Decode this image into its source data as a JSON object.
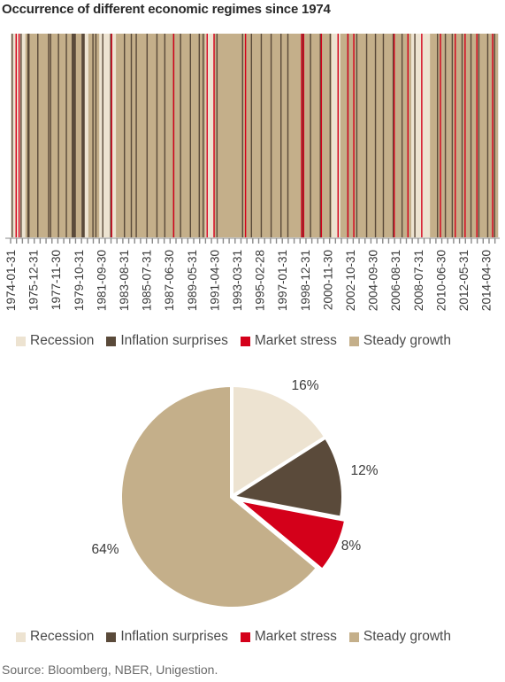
{
  "title": "Occurrence of different economic regimes since 1974",
  "source": "Source: Bloomberg, NBER, Unigestion.",
  "colors": {
    "recession": "#ede3d1",
    "inflation_surprises": "#5a4a3a",
    "market_stress": "#d4001a",
    "steady_growth": "#c4af8a",
    "axis": "#8a8a8a"
  },
  "legend": [
    {
      "key": "recession",
      "label": "Recession"
    },
    {
      "key": "inflation_surprises",
      "label": "Inflation surprises"
    },
    {
      "key": "market_stress",
      "label": "Market stress"
    },
    {
      "key": "steady_growth",
      "label": "Steady growth"
    }
  ],
  "chart_data": [
    {
      "type": "heatmap",
      "title": "Occurrence of different economic regimes since 1974",
      "x_start": "1974-01-31",
      "x_end": "2015-03-31",
      "x_tick_labels": [
        "1974-01-31",
        "1975-12-31",
        "1977-11-30",
        "1979-10-31",
        "1981-09-30",
        "1983-08-31",
        "1985-07-31",
        "1987-06-30",
        "1989-05-31",
        "1991-04-30",
        "1993-03-31",
        "1995-02-28",
        "1997-01-31",
        "1998-12-31",
        "2000-11-30",
        "2002-10-31",
        "2004-09-30",
        "2006-08-31",
        "2008-07-31",
        "2010-06-30",
        "2012-05-31",
        "2014-04-30"
      ],
      "categories": [
        "Recession",
        "Inflation surprises",
        "Market stress",
        "Steady growth"
      ],
      "regime_periods": [
        {
          "start": "1974-01-31",
          "end": "1975-03-31",
          "regime": "Recession"
        },
        {
          "start": "1975-04-30",
          "end": "1979-12-31",
          "regime": "Steady growth"
        },
        {
          "start": "1980-01-31",
          "end": "1980-07-31",
          "regime": "Recession"
        },
        {
          "start": "1980-08-31",
          "end": "1981-06-30",
          "regime": "Steady growth"
        },
        {
          "start": "1981-07-31",
          "end": "1982-11-30",
          "regime": "Recession"
        },
        {
          "start": "1982-12-31",
          "end": "1990-06-30",
          "regime": "Steady growth"
        },
        {
          "start": "1990-07-31",
          "end": "1991-03-31",
          "regime": "Recession"
        },
        {
          "start": "1991-04-30",
          "end": "2001-02-28",
          "regime": "Steady growth"
        },
        {
          "start": "2001-03-31",
          "end": "2001-11-30",
          "regime": "Recession"
        },
        {
          "start": "2001-12-31",
          "end": "2007-11-30",
          "regime": "Steady growth"
        },
        {
          "start": "2007-12-31",
          "end": "2009-06-30",
          "regime": "Recession"
        },
        {
          "start": "2009-07-31",
          "end": "2015-03-31",
          "regime": "Steady growth"
        }
      ],
      "inflation_surprise_months": [
        "1974-02-28",
        "1974-11-30",
        "1975-06-30",
        "1975-07-31",
        "1976-04-30",
        "1977-03-31",
        "1977-05-31",
        "1978-01-31",
        "1978-09-30",
        "1979-03-31",
        "1979-04-30",
        "1979-05-31",
        "1979-06-30",
        "1980-01-31",
        "1980-02-29",
        "1980-03-31",
        "1980-12-31",
        "1981-03-31",
        "1981-10-31",
        "1982-06-30",
        "1983-08-31",
        "1984-03-31",
        "1984-08-31",
        "1985-07-31",
        "1986-05-31",
        "1987-01-31",
        "1987-10-31",
        "1988-05-31",
        "1989-03-31",
        "1989-12-31",
        "1990-04-30",
        "1991-06-30",
        "1993-08-31",
        "1994-05-31",
        "1995-03-31",
        "1996-01-31",
        "1996-11-30",
        "1997-06-30",
        "1998-09-30",
        "1999-05-31",
        "2000-03-31",
        "2001-01-31",
        "2002-07-31",
        "2003-04-30",
        "2004-02-29",
        "2004-11-30",
        "2005-07-31",
        "2006-05-31",
        "2007-02-28",
        "2008-03-31",
        "2010-02-28",
        "2010-10-31",
        "2011-05-31",
        "2012-03-31",
        "2012-12-31",
        "2013-08-31",
        "2014-05-31",
        "2014-12-31"
      ],
      "market_stress_months": [
        "1974-06-30",
        "1974-09-30",
        "1982-07-31",
        "1987-10-31",
        "1990-08-31",
        "1991-03-31",
        "1993-11-30",
        "1998-08-31",
        "1998-10-31",
        "2000-04-30",
        "2001-09-30",
        "2002-07-31",
        "2003-01-31",
        "2006-06-30",
        "2007-08-31",
        "2008-10-31",
        "2010-05-31",
        "2011-08-31",
        "2012-06-30",
        "2013-06-30",
        "2014-10-31"
      ]
    },
    {
      "type": "pie",
      "categories": [
        "Recession",
        "Inflation surprises",
        "Market stress",
        "Steady growth"
      ],
      "values": [
        16,
        12,
        8,
        64
      ],
      "data_labels": [
        "16%",
        "12%",
        "8%",
        "64%"
      ]
    }
  ]
}
